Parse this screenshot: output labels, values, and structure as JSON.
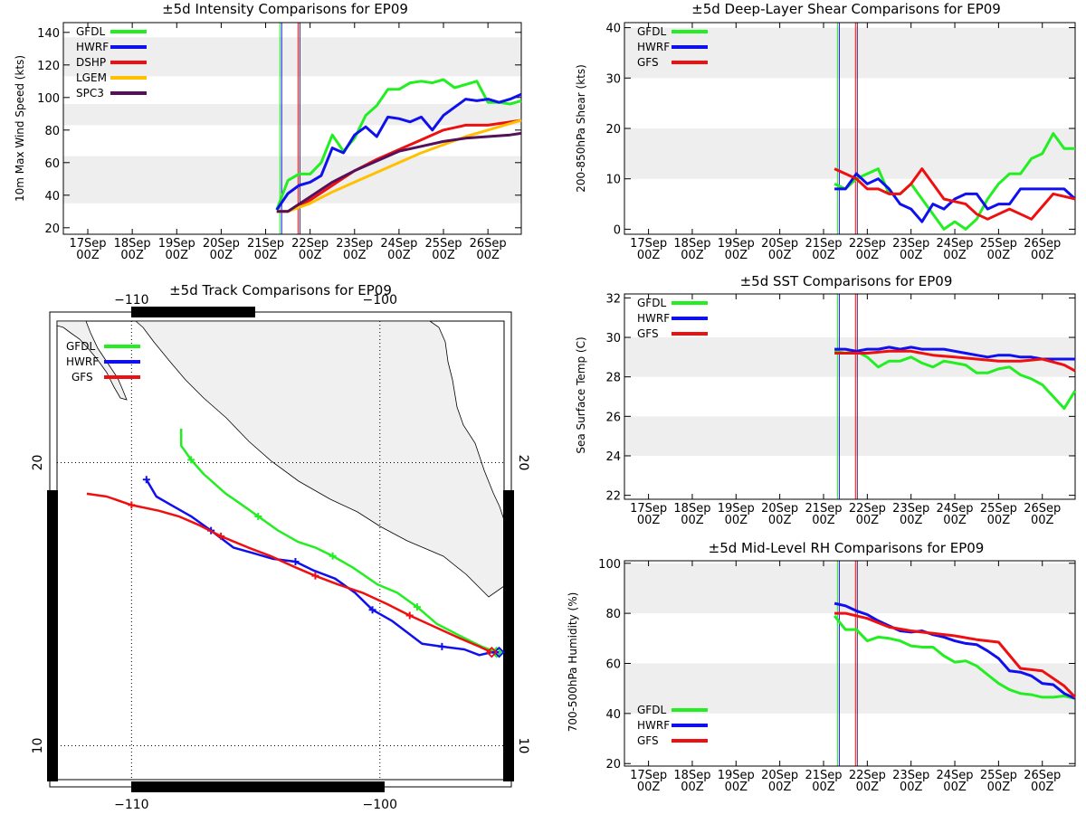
{
  "colors": {
    "GFDL": "#22ee22",
    "HWRF": "#1010ee",
    "DSHP": "#ee1010",
    "GFS": "#ee1010",
    "LGEM": "#ffc000",
    "SPC3": "#55105a",
    "band": "#eeeeee",
    "land": "#f0f0f0"
  },
  "x_ticks": [
    {
      "day": "17Sep",
      "hour": "00Z"
    },
    {
      "day": "18Sep",
      "hour": "00Z"
    },
    {
      "day": "19Sep",
      "hour": "00Z"
    },
    {
      "day": "20Sep",
      "hour": "00Z"
    },
    {
      "day": "21Sep",
      "hour": "00Z"
    },
    {
      "day": "22Sep",
      "hour": "00Z"
    },
    {
      "day": "23Sep",
      "hour": "00Z"
    },
    {
      "day": "24Sep",
      "hour": "00Z"
    },
    {
      "day": "25Sep",
      "hour": "00Z"
    },
    {
      "day": "26Sep",
      "hour": "00Z"
    }
  ],
  "chart_data": [
    {
      "type": "line",
      "id": "intensity",
      "title": "±5d Intensity Comparisons for EP09",
      "ylabel": "10m Max Wind Speed (kts)",
      "ylim": [
        16,
        146
      ],
      "xlim": [
        -0.55,
        9.75
      ],
      "yticks": [
        20,
        40,
        60,
        80,
        100,
        120,
        140
      ],
      "bands": [
        [
          35,
          64
        ],
        [
          83,
          96
        ],
        [
          113,
          137
        ]
      ],
      "vlines": [
        4.36,
        4.73
      ],
      "legend": [
        "GFDL",
        "HWRF",
        "DSHP",
        "LGEM",
        "SPC3"
      ],
      "series": [
        {
          "name": "GFDL",
          "x": [
            4.25,
            4.5,
            4.75,
            5,
            5.25,
            5.5,
            5.75,
            6,
            6.25,
            6.5,
            6.75,
            7,
            7.25,
            7.5,
            7.75,
            8,
            8.25,
            8.5,
            8.75,
            9,
            9.25,
            9.5,
            9.75
          ],
          "y": [
            31,
            49,
            53,
            53,
            60,
            77,
            67,
            75,
            89,
            95,
            105,
            105,
            109,
            110,
            109,
            111,
            106,
            108,
            110,
            97,
            97,
            96,
            98
          ]
        },
        {
          "name": "HWRF",
          "x": [
            4.25,
            4.5,
            4.75,
            5,
            5.25,
            5.5,
            5.75,
            6,
            6.25,
            6.5,
            6.75,
            7,
            7.25,
            7.5,
            7.75,
            8,
            8.25,
            8.5,
            8.75,
            9,
            9.25,
            9.5,
            9.75
          ],
          "y": [
            31,
            41,
            46,
            48,
            52,
            69,
            66,
            77,
            82,
            76,
            88,
            87,
            85,
            88,
            80,
            89,
            94,
            99,
            98,
            99,
            97,
            99,
            102
          ]
        },
        {
          "name": "DSHP",
          "x": [
            4.25,
            4.5,
            5,
            5.5,
            6,
            6.5,
            7,
            7.5,
            8,
            8.5,
            9,
            9.5,
            9.75
          ],
          "y": [
            30,
            30,
            37,
            46,
            55,
            62,
            68,
            74,
            80,
            83,
            83,
            85,
            86
          ]
        },
        {
          "name": "LGEM",
          "x": [
            4.25,
            4.5,
            5,
            5.5,
            6,
            6.5,
            7,
            7.5,
            8,
            8.5,
            9,
            9.5,
            9.75
          ],
          "y": [
            30,
            30,
            35,
            42,
            48,
            54,
            60,
            66,
            71,
            76,
            80,
            84,
            86
          ]
        },
        {
          "name": "SPC3",
          "x": [
            4.25,
            4.5,
            5,
            5.5,
            6,
            6.5,
            7,
            7.5,
            8,
            8.5,
            9,
            9.5,
            9.75
          ],
          "y": [
            30,
            30,
            39,
            48,
            55,
            61,
            67,
            70,
            73,
            75,
            76,
            77,
            78
          ]
        }
      ]
    },
    {
      "type": "line",
      "id": "shear",
      "title": "±5d Deep-Layer Shear Comparisons for EP09",
      "ylabel": "200-850hPa Shear (kts)",
      "ylim": [
        -1,
        41
      ],
      "xlim": [
        -0.55,
        9.75
      ],
      "yticks": [
        0,
        10,
        20,
        30,
        40
      ],
      "bands": [
        [
          10,
          20
        ],
        [
          30,
          40
        ]
      ],
      "vlines": [
        4.36,
        4.73
      ],
      "legend": [
        "GFDL",
        "HWRF",
        "GFS"
      ],
      "series": [
        {
          "name": "GFDL",
          "x": [
            4.25,
            4.5,
            4.75,
            5,
            5.25,
            5.5,
            5.75,
            6,
            6.25,
            6.5,
            6.75,
            7,
            7.25,
            7.5,
            7.75,
            8,
            8.25,
            8.5,
            8.75,
            9,
            9.25,
            9.5,
            9.75
          ],
          "y": [
            9,
            8,
            10,
            11,
            12,
            7,
            7,
            9,
            6,
            3,
            0,
            1.5,
            0,
            2,
            6,
            9,
            11,
            11,
            14,
            15,
            19,
            16,
            16
          ]
        },
        {
          "name": "HWRF",
          "x": [
            4.25,
            4.5,
            4.75,
            5,
            5.25,
            5.5,
            5.75,
            6,
            6.25,
            6.5,
            6.75,
            7,
            7.25,
            7.5,
            7.75,
            8,
            8.25,
            8.5,
            8.75,
            9,
            9.25,
            9.5,
            9.75
          ],
          "y": [
            8,
            8,
            11,
            9,
            10,
            8,
            5,
            4,
            1.5,
            5,
            4,
            6,
            7,
            7,
            4,
            5,
            5,
            8,
            8,
            8,
            8,
            8,
            6
          ]
        },
        {
          "name": "GFS",
          "x": [
            4.25,
            4.5,
            4.75,
            5,
            5.25,
            5.5,
            5.75,
            6,
            6.25,
            6.5,
            6.75,
            7,
            7.25,
            7.5,
            7.75,
            8,
            8.25,
            8.5,
            8.75,
            9,
            9.25,
            9.5,
            9.75
          ],
          "y": [
            12,
            11,
            10,
            8,
            8,
            7,
            7,
            9,
            12,
            9,
            6,
            5.5,
            5,
            3,
            2,
            3,
            4,
            3,
            2,
            4.5,
            7,
            6.5,
            6
          ]
        }
      ]
    },
    {
      "type": "line",
      "id": "sst",
      "title": "±5d SST Comparisons for EP09",
      "ylabel": "Sea Surface Temp (C)",
      "ylim": [
        21.8,
        32.2
      ],
      "xlim": [
        -0.55,
        9.75
      ],
      "yticks": [
        22,
        24,
        26,
        28,
        30,
        32
      ],
      "bands": [
        [
          24,
          26
        ],
        [
          28,
          30
        ]
      ],
      "vlines": [
        4.36,
        4.73
      ],
      "legend": [
        "GFDL",
        "HWRF",
        "GFS"
      ],
      "series": [
        {
          "name": "GFDL",
          "x": [
            4.25,
            4.5,
            4.75,
            5,
            5.25,
            5.5,
            5.75,
            6,
            6.25,
            6.5,
            6.75,
            7,
            7.25,
            7.5,
            7.75,
            8,
            8.25,
            8.5,
            8.75,
            9,
            9.25,
            9.5,
            9.75
          ],
          "y": [
            29.3,
            29.2,
            29.3,
            29.0,
            28.5,
            28.8,
            28.8,
            29.0,
            28.7,
            28.5,
            28.8,
            28.7,
            28.6,
            28.2,
            28.2,
            28.4,
            28.5,
            28.1,
            27.9,
            27.6,
            27.0,
            26.4,
            27.3
          ]
        },
        {
          "name": "HWRF",
          "x": [
            4.25,
            4.5,
            4.75,
            5,
            5.25,
            5.5,
            5.75,
            6,
            6.25,
            6.5,
            6.75,
            7,
            7.25,
            7.5,
            7.75,
            8,
            8.25,
            8.5,
            8.75,
            9,
            9.25,
            9.5,
            9.75
          ],
          "y": [
            29.4,
            29.4,
            29.3,
            29.4,
            29.4,
            29.5,
            29.4,
            29.5,
            29.4,
            29.4,
            29.4,
            29.3,
            29.2,
            29.1,
            29.0,
            29.1,
            29.1,
            29.0,
            29.0,
            28.9,
            28.9,
            28.9,
            28.9
          ]
        },
        {
          "name": "GFS",
          "x": [
            4.25,
            4.5,
            5,
            5.5,
            6,
            6.5,
            7,
            7.5,
            8,
            8.5,
            9,
            9.5,
            9.75
          ],
          "y": [
            29.2,
            29.2,
            29.2,
            29.3,
            29.3,
            29.1,
            29.0,
            28.9,
            28.8,
            28.8,
            28.9,
            28.6,
            28.3
          ]
        }
      ]
    },
    {
      "type": "line",
      "id": "rh",
      "title": "±5d Mid-Level RH Comparisons for EP09",
      "ylabel": "700-500hPa Humidity (%)",
      "ylim": [
        19,
        101
      ],
      "xlim": [
        -0.55,
        9.75
      ],
      "yticks": [
        20,
        40,
        60,
        80,
        100
      ],
      "bands": [
        [
          40,
          60
        ],
        [
          80,
          100
        ]
      ],
      "vlines": [
        4.36,
        4.73
      ],
      "legend": [
        "GFDL",
        "HWRF",
        "GFS"
      ],
      "series": [
        {
          "name": "GFDL",
          "x": [
            4.25,
            4.5,
            4.75,
            5,
            5.25,
            5.5,
            5.75,
            6,
            6.25,
            6.5,
            6.75,
            7,
            7.25,
            7.5,
            7.75,
            8,
            8.25,
            8.5,
            8.75,
            9,
            9.25,
            9.5,
            9.75
          ],
          "y": [
            79,
            73.5,
            73.5,
            69,
            70.5,
            70,
            69,
            67,
            66.5,
            66.5,
            63,
            60.5,
            61,
            59,
            55.5,
            52,
            49.5,
            48,
            47.5,
            46.5,
            46.5,
            47,
            46
          ]
        },
        {
          "name": "HWRF",
          "x": [
            4.25,
            4.5,
            4.75,
            5,
            5.25,
            5.5,
            5.75,
            6,
            6.25,
            6.5,
            6.75,
            7,
            7.25,
            7.5,
            7.75,
            8,
            8.25,
            8.5,
            8.75,
            9,
            9.25,
            9.5,
            9.75
          ],
          "y": [
            84,
            83,
            81,
            79.5,
            77,
            75,
            73,
            72.5,
            73,
            71.5,
            70.5,
            69,
            68,
            67.5,
            65,
            62,
            57,
            56.5,
            55,
            52,
            51.5,
            48,
            46
          ]
        },
        {
          "name": "GFS",
          "x": [
            4.25,
            4.5,
            5,
            5.5,
            6,
            6.5,
            7,
            7.5,
            8,
            8.5,
            9,
            9.5,
            9.75
          ],
          "y": [
            80,
            80,
            78,
            74.5,
            73,
            72,
            71,
            69.5,
            68.5,
            58,
            57,
            51,
            46.5
          ]
        }
      ]
    },
    {
      "type": "scatter",
      "id": "track",
      "title": "±5d Track Comparisons for EP09",
      "lon_range": [
        -113.0,
        -95.0
      ],
      "lat_range": [
        8.8,
        25.0
      ],
      "lon_labels_top": [
        "−110",
        "−100"
      ],
      "lon_labels_bottom": [
        "−110",
        "−100"
      ],
      "lat_labels": [
        "20",
        "10"
      ],
      "lon_ticks": [
        -110,
        -100
      ],
      "lat_ticks": [
        20,
        10
      ],
      "legend": [
        "GFDL",
        "HWRF",
        "GFS"
      ],
      "series": [
        {
          "name": "GFDL",
          "lon": [
            -95.3,
            -95.9,
            -96.6,
            -97.7,
            -98.5,
            -99.3,
            -100.1,
            -101.1,
            -101.9,
            -102.6,
            -103.3,
            -104.1,
            -104.9,
            -105.7,
            -106.2,
            -107.1,
            -107.6,
            -108.0,
            -108.0
          ],
          "lat": [
            13.3,
            13.5,
            13.8,
            14.3,
            14.9,
            15.4,
            15.7,
            16.3,
            16.7,
            17.0,
            17.2,
            17.6,
            18.1,
            18.6,
            18.9,
            19.6,
            20.1,
            20.6,
            21.2
          ]
        },
        {
          "name": "HWRF",
          "lon": [
            -95.2,
            -95.5,
            -96.0,
            -96.6,
            -97.5,
            -98.3,
            -98.9,
            -99.5,
            -100.3,
            -101.0,
            -101.8,
            -102.7,
            -103.4,
            -104.3,
            -105.1,
            -105.9,
            -106.8,
            -107.6,
            -108.4,
            -109.0,
            -109.4
          ],
          "lat": [
            13.3,
            13.3,
            13.2,
            13.4,
            13.5,
            13.6,
            14.0,
            14.4,
            14.8,
            15.4,
            15.9,
            16.2,
            16.5,
            16.6,
            16.8,
            17.0,
            17.6,
            18.1,
            18.5,
            18.8,
            19.4
          ]
        },
        {
          "name": "GFS",
          "lon": [
            -95.5,
            -96.0,
            -96.8,
            -97.8,
            -98.8,
            -99.7,
            -100.7,
            -101.7,
            -102.6,
            -103.4,
            -104.4,
            -105.3,
            -106.4,
            -107.3,
            -108.1,
            -108.9,
            -110.0,
            -111.0,
            -111.8
          ],
          "lat": [
            13.3,
            13.5,
            13.8,
            14.2,
            14.6,
            15.0,
            15.4,
            15.7,
            16.0,
            16.3,
            16.7,
            17.0,
            17.4,
            17.8,
            18.1,
            18.3,
            18.5,
            18.8,
            18.9
          ]
        }
      ]
    }
  ]
}
